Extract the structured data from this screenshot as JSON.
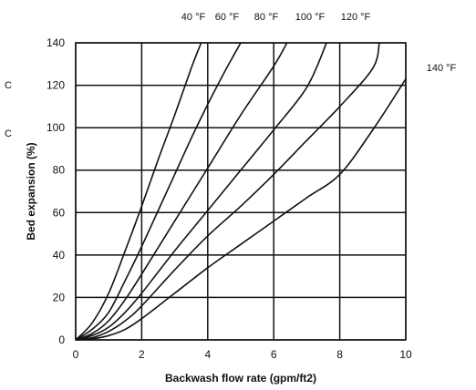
{
  "chart_data": {
    "type": "line",
    "title": "",
    "xlabel": "Backwash flow rate (gpm/ft2)",
    "ylabel": "Bed expansion (%)",
    "xlim": [
      0,
      10
    ],
    "ylim": [
      0,
      140
    ],
    "xticks": [
      "0",
      "2",
      "4",
      "6",
      "8",
      "10"
    ],
    "yticks": [
      "0",
      "20",
      "40",
      "60",
      "80",
      "100",
      "120",
      "140"
    ],
    "grid": true,
    "edge_marks": [
      "C",
      "C"
    ],
    "series": [
      {
        "name": "40 °F",
        "x": [
          0,
          0.5,
          1,
          1.5,
          2,
          2.5,
          3,
          3.5,
          3.8
        ],
        "y": [
          0,
          8,
          22,
          42,
          63,
          85,
          106,
          128,
          140
        ]
      },
      {
        "name": "60 °F",
        "x": [
          0,
          0.5,
          1,
          1.5,
          2,
          2.5,
          3,
          3.5,
          4,
          4.5,
          5.0
        ],
        "y": [
          0,
          5,
          13,
          28,
          44,
          61,
          78,
          95,
          111,
          126,
          140
        ]
      },
      {
        "name": "80 °F",
        "x": [
          0,
          0.5,
          1,
          1.5,
          2,
          3,
          4,
          5,
          6,
          6.4
        ],
        "y": [
          0,
          3,
          9,
          19,
          31,
          56,
          81,
          106,
          129,
          140
        ]
      },
      {
        "name": "100 °F",
        "x": [
          0,
          0.5,
          1,
          1.5,
          2,
          3,
          4,
          5,
          6,
          7,
          7.6
        ],
        "y": [
          0,
          2,
          6,
          13,
          22,
          42,
          61,
          80,
          99,
          119,
          140
        ]
      },
      {
        "name": "120 °F",
        "x": [
          0,
          0.5,
          1,
          1.5,
          2,
          3,
          4,
          5,
          6,
          7,
          8,
          9,
          9.2
        ],
        "y": [
          0,
          1,
          4,
          9,
          16,
          33,
          49,
          63,
          78,
          94,
          110,
          128,
          140
        ]
      },
      {
        "name": "140 °F",
        "x": [
          0,
          0.5,
          1,
          1.5,
          2,
          3,
          4,
          5,
          6,
          7,
          8,
          9,
          10
        ],
        "y": [
          0,
          0.5,
          2,
          5,
          10,
          22,
          34,
          45,
          56,
          67,
          78,
          99,
          123
        ]
      }
    ]
  }
}
